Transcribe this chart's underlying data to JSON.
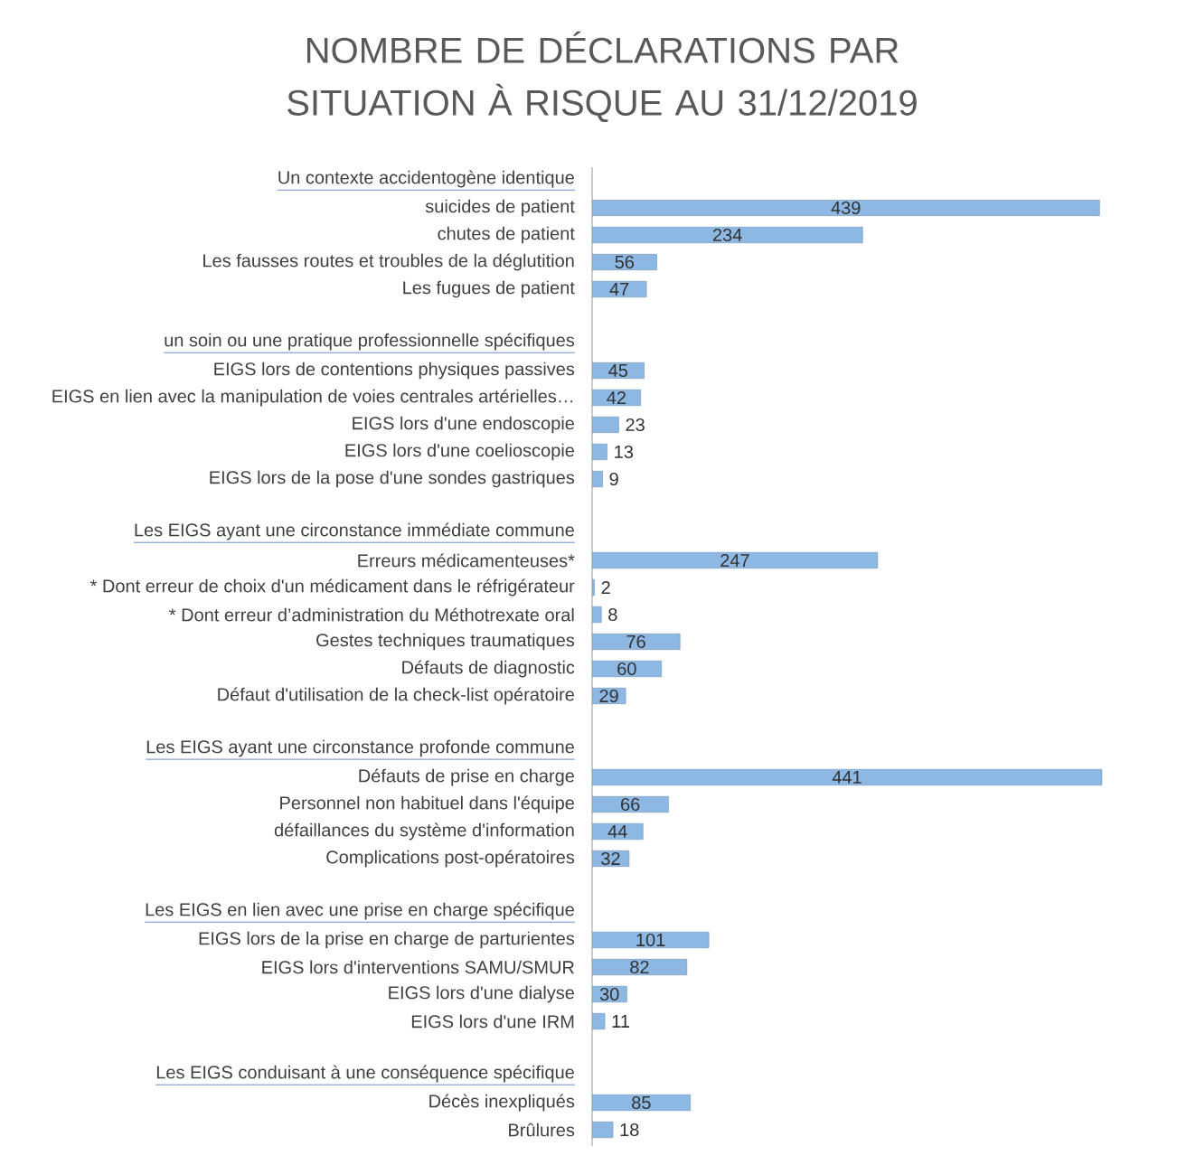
{
  "chart_data": {
    "type": "bar",
    "orientation": "horizontal",
    "title": "NOMBRE DE DÉCLARATIONS PAR SITUATION À RISQUE AU 31/12/2019",
    "categories": [
      "Un contexte accidentogène identique",
      "suicides de patient",
      "chutes de patient",
      "Les fausses routes et troubles de la déglutition",
      "Les fugues de patient",
      null,
      "un soin ou une pratique professionnelle spécifiques",
      "EIGS lors de contentions physiques passives",
      "EIGS en lien avec la manipulation de voies centrales artérielles…",
      "EIGS lors d'une endoscopie",
      "EIGS lors d'une coelioscopie",
      "EIGS lors de la pose d'une sondes gastriques",
      null,
      "Les EIGS ayant une circonstance immédiate commune",
      "Erreurs médicamenteuses*",
      "* Dont erreur de choix d'un médicament dans le réfrigérateur",
      "* Dont erreur d’administration du Méthotrexate oral",
      "Gestes techniques traumatiques",
      "Défauts de diagnostic",
      "Défaut d'utilisation de la check-list opératoire",
      null,
      "Les EIGS ayant une circonstance profonde commune",
      "Défauts de prise en charge",
      "Personnel non habituel dans l'équipe",
      "défaillances du système d'information",
      "Complications post-opératoires",
      null,
      "Les EIGS en lien avec une prise en charge spécifique",
      "EIGS lors de la prise en charge de parturientes",
      "EIGS lors d'interventions SAMU/SMUR",
      "EIGS lors d'une dialyse",
      "EIGS lors d'une IRM",
      null,
      "Les EIGS conduisant à une conséquence spécifique",
      "Décès inexpliqués",
      "Brûlures"
    ],
    "values": [
      null,
      439,
      234,
      56,
      47,
      null,
      null,
      45,
      42,
      23,
      13,
      9,
      null,
      null,
      247,
      2,
      8,
      76,
      60,
      29,
      null,
      null,
      441,
      66,
      44,
      32,
      null,
      null,
      101,
      82,
      30,
      11,
      null,
      null,
      85,
      18
    ],
    "color": "#8db8e3",
    "data_labels": true,
    "tick_labels": "y"
  }
}
